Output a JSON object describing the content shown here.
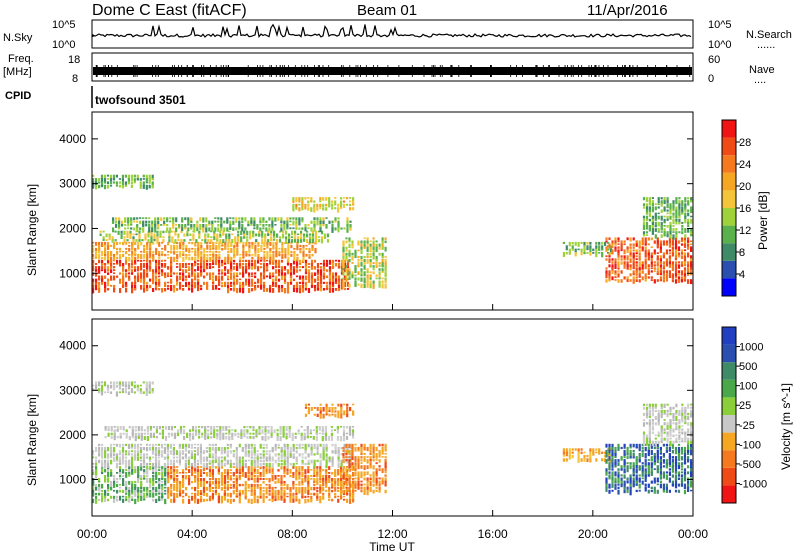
{
  "header": {
    "station": "Dome C East (fitACF)",
    "beam": "Beam 01",
    "date": "11/Apr/2016"
  },
  "left_labels": {
    "nsky": "N.Sky",
    "freq_line1": "Freq.",
    "freq_line2": "[MHz]",
    "cpid": "CPID"
  },
  "right_labels": {
    "nsearch": "N.Search",
    "nsearch_dots": "......",
    "nave": "Nave",
    "nave_dots": "...."
  },
  "noise_panel": {
    "left_ticks": [
      "10^5",
      "10^0"
    ],
    "right_ticks": [
      "10^5",
      "10^0"
    ]
  },
  "freq_panel": {
    "left_ticks": [
      "18",
      "8"
    ],
    "right_ticks": [
      "60",
      "0"
    ]
  },
  "cpid_panel": {
    "text": "twofsound 3501"
  },
  "x_axis": {
    "label": "Time UT",
    "ticks": [
      "00:00",
      "04:00",
      "08:00",
      "12:00",
      "16:00",
      "20:00",
      "00:00"
    ]
  },
  "colors": {
    "power_scale": [
      "#0000ff",
      "#2a4fae",
      "#3f8a67",
      "#5ab04a",
      "#9fd13a",
      "#f4c43a",
      "#f5a623",
      "#f57a1f",
      "#f04a16",
      "#f01414"
    ],
    "velocity_scale": [
      "#f01414",
      "#f04a16",
      "#f57a1f",
      "#f5a623",
      "#c8c8c8",
      "#8acf3a",
      "#4aa84a",
      "#3f8a67",
      "#2a4fae",
      "#2040c0"
    ]
  },
  "chart_data": [
    {
      "type": "heatmap",
      "title": "",
      "xlabel": "",
      "ylabel": "Slant Range [km]",
      "ylim": [
        180,
        4600
      ],
      "xlim": [
        0,
        24
      ],
      "y_ticks": [
        "1000",
        "2000",
        "3000",
        "4000"
      ],
      "colorbar": {
        "label": "Power [dB]",
        "ticks": [
          "4",
          "8",
          "12",
          "16",
          "20",
          "24",
          "28"
        ],
        "range": [
          0,
          30
        ]
      },
      "regions": [
        {
          "t0": 0.0,
          "t1": 10.3,
          "r0": 600,
          "r1": 1300,
          "value": 26
        },
        {
          "t0": 0.0,
          "t1": 9.0,
          "r0": 1300,
          "r1": 1700,
          "value": 20
        },
        {
          "t0": 0.3,
          "t1": 9.5,
          "r0": 1700,
          "r1": 1950,
          "value": 13
        },
        {
          "t0": 0.8,
          "t1": 10.4,
          "r0": 1950,
          "r1": 2250,
          "value": 11
        },
        {
          "t0": 8.0,
          "t1": 10.5,
          "r0": 2400,
          "r1": 2700,
          "value": 17
        },
        {
          "t0": 0.0,
          "t1": 2.5,
          "r0": 2900,
          "r1": 3200,
          "value": 10
        },
        {
          "t0": 10.0,
          "t1": 11.8,
          "r0": 700,
          "r1": 1800,
          "value": 14
        },
        {
          "t0": 18.8,
          "t1": 20.8,
          "r0": 1400,
          "r1": 1700,
          "value": 11
        },
        {
          "t0": 20.5,
          "t1": 24.0,
          "r0": 800,
          "r1": 1800,
          "value": 25
        },
        {
          "t0": 22.0,
          "t1": 24.0,
          "r0": 1800,
          "r1": 2700,
          "value": 10
        }
      ]
    },
    {
      "type": "heatmap",
      "title": "",
      "xlabel": "Time UT",
      "ylabel": "Slant Range [km]",
      "ylim": [
        180,
        4600
      ],
      "xlim": [
        0,
        24
      ],
      "y_ticks": [
        "1000",
        "2000",
        "3000",
        "4000"
      ],
      "colorbar": {
        "label": "Velocity [m s^-1]",
        "ticks": [
          "-1000",
          "-500",
          "-100",
          "-25",
          "25",
          "100",
          "500",
          "1000"
        ]
      },
      "regions": [
        {
          "t0": 0.0,
          "t1": 3.0,
          "r0": 500,
          "r1": 1300,
          "value": "green"
        },
        {
          "t0": 3.0,
          "t1": 10.5,
          "r0": 500,
          "r1": 1300,
          "value": "orange"
        },
        {
          "t0": 0.0,
          "t1": 10.4,
          "r0": 1300,
          "r1": 1800,
          "value": "grey"
        },
        {
          "t0": 0.5,
          "t1": 10.5,
          "r0": 1900,
          "r1": 2200,
          "value": "grey"
        },
        {
          "t0": 8.5,
          "t1": 10.5,
          "r0": 2400,
          "r1": 2700,
          "value": "orange"
        },
        {
          "t0": 0.0,
          "t1": 2.5,
          "r0": 2900,
          "r1": 3200,
          "value": "grey"
        },
        {
          "t0": 10.0,
          "t1": 11.8,
          "r0": 700,
          "r1": 1800,
          "value": "orange"
        },
        {
          "t0": 18.8,
          "t1": 20.8,
          "r0": 1400,
          "r1": 1700,
          "value": "yellow"
        },
        {
          "t0": 20.5,
          "t1": 24.0,
          "r0": 700,
          "r1": 1800,
          "value": "blue-green"
        },
        {
          "t0": 22.0,
          "t1": 24.0,
          "r0": 1800,
          "r1": 2700,
          "value": "grey"
        }
      ]
    }
  ]
}
